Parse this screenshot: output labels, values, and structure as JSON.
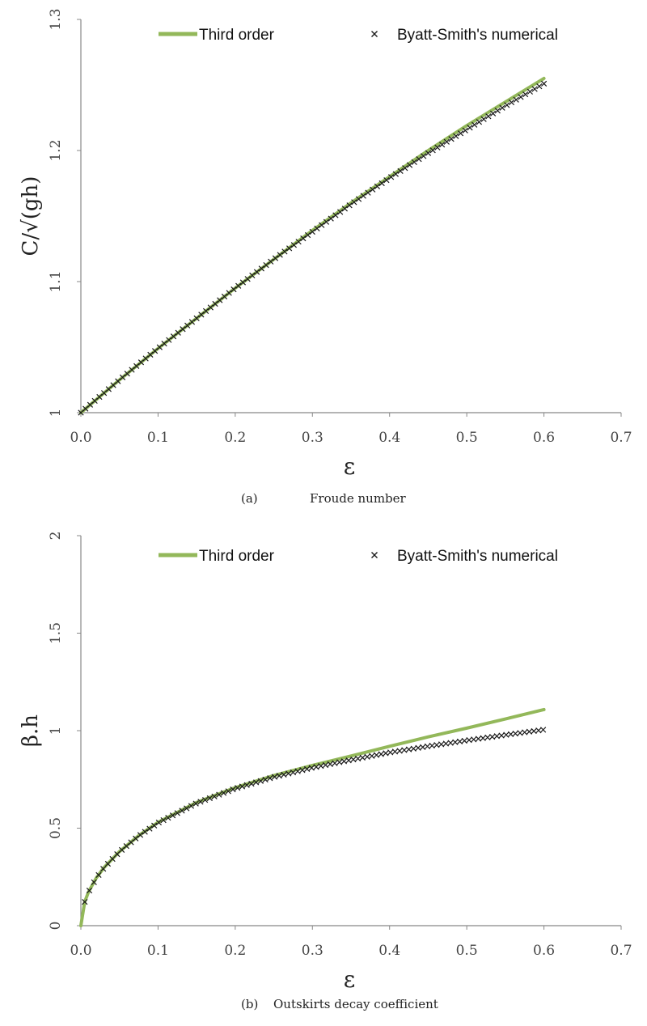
{
  "colors": {
    "series_line": "#93b85a",
    "series_markers": "#1a1a1a",
    "axis": "#888888"
  },
  "chart_data": [
    {
      "type": "line",
      "panel_label": "(a)",
      "caption": "Froude number",
      "xlabel": "ε",
      "ylabel": "C/√(gh)",
      "xlim": [
        0,
        0.7
      ],
      "ylim": [
        1,
        1.3
      ],
      "xticks": [
        "0.0",
        "0.1",
        "0.2",
        "0.3",
        "0.4",
        "0.5",
        "0.6",
        "0.7"
      ],
      "yticks": [
        "1",
        "1.1",
        "1.2",
        "1.3"
      ],
      "grid": false,
      "legend_position": "top",
      "series": [
        {
          "name": "Third order",
          "style": "line",
          "x": [
            0,
            0.05,
            0.1,
            0.15,
            0.2,
            0.25,
            0.3,
            0.35,
            0.4,
            0.45,
            0.5,
            0.55,
            0.6
          ],
          "y": [
            1.0,
            1.025,
            1.049,
            1.072,
            1.095,
            1.117,
            1.139,
            1.16,
            1.18,
            1.2,
            1.219,
            1.237,
            1.255
          ]
        },
        {
          "name": "Byatt-Smith's numerical",
          "style": "x-markers",
          "x": [
            0,
            0.05,
            0.1,
            0.15,
            0.2,
            0.25,
            0.3,
            0.35,
            0.4,
            0.45,
            0.5,
            0.55,
            0.6
          ],
          "y": [
            1.0,
            1.025,
            1.049,
            1.072,
            1.095,
            1.117,
            1.138,
            1.159,
            1.179,
            1.198,
            1.216,
            1.234,
            1.251
          ]
        }
      ]
    },
    {
      "type": "line",
      "panel_label": "(b)",
      "caption": "Outskirts decay coefficient",
      "xlabel": "ε",
      "ylabel": "β.h",
      "xlim": [
        0,
        0.7
      ],
      "ylim": [
        0,
        2
      ],
      "xticks": [
        "0.0",
        "0.1",
        "0.2",
        "0.3",
        "0.4",
        "0.5",
        "0.6",
        "0.7"
      ],
      "yticks": [
        "0",
        "0.5",
        "1",
        "1.5",
        "2"
      ],
      "grid": false,
      "legend_position": "top",
      "series": [
        {
          "name": "Third order",
          "style": "line",
          "x": [
            0,
            0.005,
            0.01,
            0.02,
            0.03,
            0.05,
            0.075,
            0.1,
            0.15,
            0.2,
            0.25,
            0.3,
            0.35,
            0.4,
            0.45,
            0.5,
            0.55,
            0.6
          ],
          "y": [
            0,
            0.122,
            0.174,
            0.245,
            0.298,
            0.38,
            0.462,
            0.53,
            0.632,
            0.708,
            0.77,
            0.822,
            0.87,
            0.92,
            0.968,
            1.013,
            1.06,
            1.108
          ]
        },
        {
          "name": "Byatt-Smith's numerical",
          "style": "x-markers",
          "x": [
            0.005,
            0.01,
            0.02,
            0.03,
            0.05,
            0.075,
            0.1,
            0.15,
            0.2,
            0.25,
            0.3,
            0.35,
            0.4,
            0.45,
            0.5,
            0.55,
            0.6
          ],
          "y": [
            0.122,
            0.173,
            0.244,
            0.297,
            0.379,
            0.46,
            0.527,
            0.628,
            0.703,
            0.762,
            0.81,
            0.85,
            0.888,
            0.92,
            0.95,
            0.978,
            1.005
          ]
        }
      ]
    }
  ]
}
